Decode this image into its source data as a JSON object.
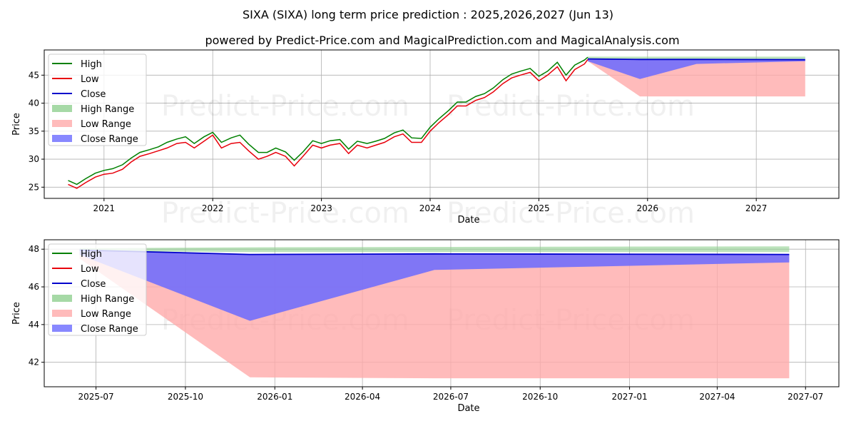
{
  "title": "SIXA (SIXA) long term price prediction : 2025,2026,2027 (Jun 13)",
  "subtitle": "powered by Predict-Price.com and MagicalPrediction.com and MagicalAnalysis.com",
  "watermark": "Predict-Price.com",
  "colors": {
    "high": "#008000",
    "low": "#e8000b",
    "close": "#0000cc",
    "high_range": "#90d090",
    "low_range": "#ffaaaa",
    "close_range": "#6a6aff",
    "grid": "#b0b0b0"
  },
  "chart_data": [
    {
      "type": "line",
      "ylabel": "Price",
      "xlabel": "Date",
      "x_domain": [
        2020.45,
        2027.76
      ],
      "ylim": [
        23,
        49.5
      ],
      "yticks": [
        25,
        30,
        35,
        40,
        45
      ],
      "xticks": [
        {
          "value": 2021.0,
          "label": "2021"
        },
        {
          "value": 2022.0,
          "label": "2022"
        },
        {
          "value": 2023.0,
          "label": "2023"
        },
        {
          "value": 2024.0,
          "label": "2024"
        },
        {
          "value": 2025.0,
          "label": "2025"
        },
        {
          "value": 2026.0,
          "label": "2026"
        },
        {
          "value": 2027.0,
          "label": "2027"
        }
      ],
      "legend": {
        "position": "top-left",
        "entries": [
          {
            "label": "High",
            "kind": "line",
            "series": "high"
          },
          {
            "label": "Low",
            "kind": "line",
            "series": "low"
          },
          {
            "label": "Close",
            "kind": "line",
            "series": "close"
          },
          {
            "label": "High Range",
            "kind": "patch",
            "series": "high_range"
          },
          {
            "label": "Low Range",
            "kind": "patch",
            "series": "low_range"
          },
          {
            "label": "Close Range",
            "kind": "patch",
            "series": "close_range"
          }
        ]
      },
      "history": {
        "dates": [
          2020.67,
          2020.75,
          2020.83,
          2020.92,
          2021.0,
          2021.08,
          2021.17,
          2021.25,
          2021.33,
          2021.42,
          2021.5,
          2021.58,
          2021.67,
          2021.75,
          2021.83,
          2021.92,
          2022.0,
          2022.08,
          2022.17,
          2022.25,
          2022.33,
          2022.42,
          2022.5,
          2022.58,
          2022.67,
          2022.75,
          2022.83,
          2022.92,
          2023.0,
          2023.08,
          2023.17,
          2023.25,
          2023.33,
          2023.42,
          2023.5,
          2023.58,
          2023.67,
          2023.75,
          2023.83,
          2023.92,
          2024.0,
          2024.08,
          2024.17,
          2024.25,
          2024.33,
          2024.42,
          2024.5,
          2024.58,
          2024.67,
          2024.75,
          2024.83,
          2024.92,
          2025.0,
          2025.08,
          2025.17,
          2025.25,
          2025.33,
          2025.42,
          2025.45
        ],
        "low": [
          25.5,
          24.8,
          25.8,
          26.8,
          27.3,
          27.5,
          28.2,
          29.5,
          30.5,
          31.0,
          31.5,
          32.0,
          32.8,
          33.0,
          32.0,
          33.2,
          34.3,
          32.0,
          32.8,
          33.0,
          31.5,
          30.0,
          30.5,
          31.2,
          30.5,
          28.8,
          30.5,
          32.5,
          32.0,
          32.5,
          32.8,
          31.0,
          32.5,
          32.0,
          32.5,
          33.0,
          34.0,
          34.5,
          33.0,
          33.0,
          35.0,
          36.5,
          38.0,
          39.5,
          39.5,
          40.5,
          41.0,
          42.0,
          43.5,
          44.5,
          45.0,
          45.5,
          44.0,
          45.0,
          46.5,
          44.0,
          46.0,
          47.0,
          47.8
        ],
        "high": [
          26.2,
          25.5,
          26.5,
          27.5,
          28.0,
          28.3,
          29.0,
          30.2,
          31.2,
          31.7,
          32.2,
          33.0,
          33.6,
          34.0,
          32.8,
          34.0,
          34.8,
          33.0,
          33.8,
          34.3,
          32.7,
          31.2,
          31.2,
          32.0,
          31.3,
          29.8,
          31.3,
          33.3,
          32.8,
          33.3,
          33.5,
          31.8,
          33.2,
          32.8,
          33.2,
          33.7,
          34.7,
          35.2,
          33.8,
          33.7,
          35.7,
          37.2,
          38.7,
          40.2,
          40.2,
          41.2,
          41.7,
          42.7,
          44.2,
          45.2,
          45.7,
          46.2,
          44.8,
          45.7,
          47.3,
          45.0,
          46.8,
          47.7,
          48.2
        ]
      },
      "forecast": {
        "dates": [
          2025.45,
          2025.93,
          2026.45,
          2027.45
        ],
        "close": [
          47.9,
          47.8,
          47.8,
          47.75
        ],
        "high_range_top": [
          48.3,
          48.3,
          48.3,
          48.3
        ],
        "close_range_low": [
          47.5,
          44.3,
          47.0,
          47.5
        ],
        "low_range_low": [
          47.5,
          41.2,
          41.2,
          41.2
        ]
      }
    },
    {
      "type": "line",
      "ylabel": "Price",
      "xlabel": "Date",
      "x_domain": [
        2025.35,
        2027.59
      ],
      "ylim": [
        40.7,
        48.5
      ],
      "yticks": [
        42,
        44,
        46,
        48
      ],
      "xticks": [
        {
          "value": 2025.496,
          "label": "2025-07"
        },
        {
          "value": 2025.748,
          "label": "2025-10"
        },
        {
          "value": 2026.0,
          "label": "2026-01"
        },
        {
          "value": 2026.247,
          "label": "2026-04"
        },
        {
          "value": 2026.496,
          "label": "2026-07"
        },
        {
          "value": 2026.748,
          "label": "2026-10"
        },
        {
          "value": 2027.0,
          "label": "2027-01"
        },
        {
          "value": 2027.247,
          "label": "2027-04"
        },
        {
          "value": 2027.496,
          "label": "2027-07"
        }
      ],
      "legend": {
        "position": "top-left",
        "entries": [
          {
            "label": "High",
            "kind": "line",
            "series": "high"
          },
          {
            "label": "Low",
            "kind": "line",
            "series": "low"
          },
          {
            "label": "Close",
            "kind": "line",
            "series": "close"
          },
          {
            "label": "High Range",
            "kind": "patch",
            "series": "high_range"
          },
          {
            "label": "Low Range",
            "kind": "patch",
            "series": "low_range"
          },
          {
            "label": "Close Range",
            "kind": "patch",
            "series": "close_range"
          }
        ]
      },
      "forecast": {
        "dates": [
          2025.45,
          2025.93,
          2026.45,
          2027.45
        ],
        "close": [
          47.95,
          47.72,
          47.75,
          47.72
        ],
        "high_range_top": [
          48.05,
          48.1,
          48.12,
          48.15
        ],
        "high_range_low": [
          47.9,
          47.85,
          47.85,
          47.85
        ],
        "close_range_low": [
          47.7,
          44.2,
          46.9,
          47.3
        ],
        "low_range_low": [
          47.5,
          41.2,
          41.15,
          41.15
        ]
      }
    }
  ]
}
